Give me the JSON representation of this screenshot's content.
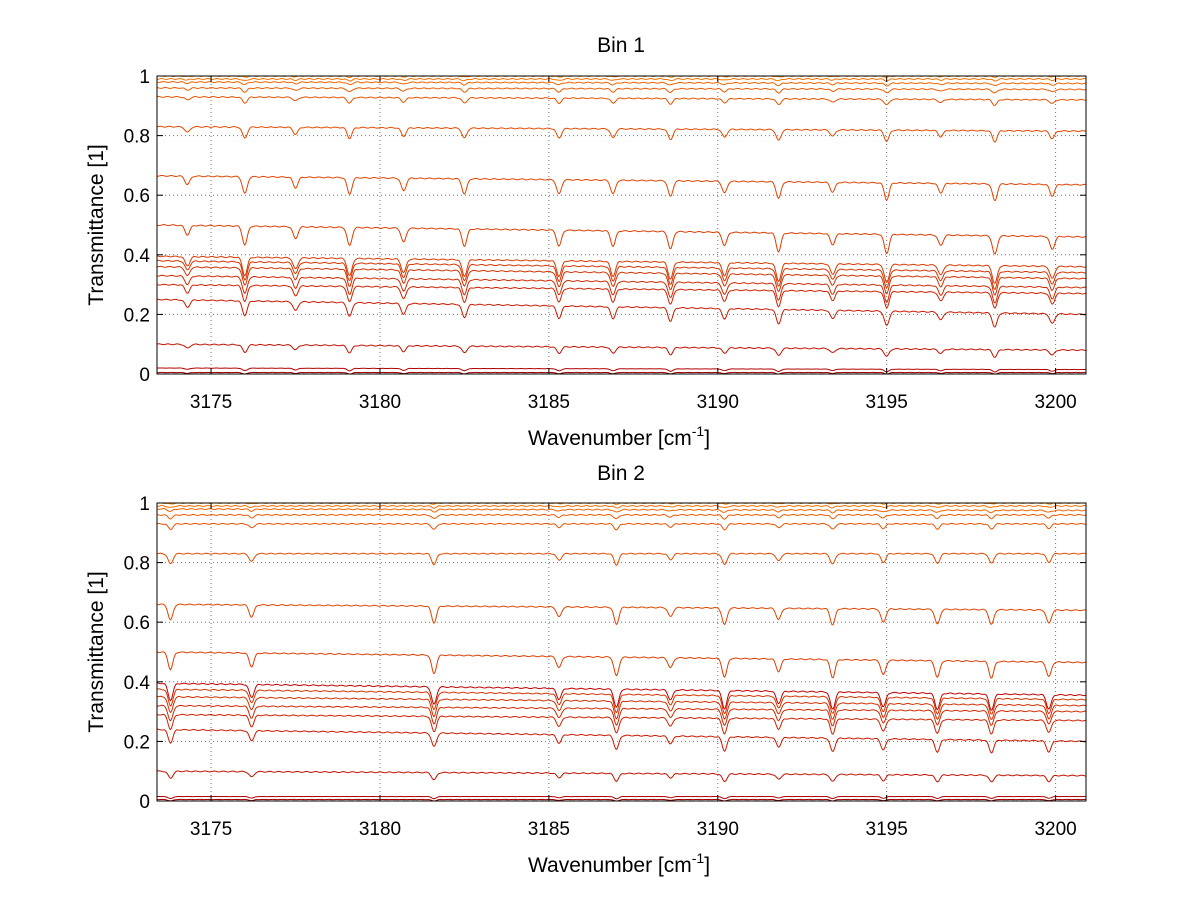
{
  "chart_data": [
    {
      "type": "line",
      "title": "Bin 1",
      "xlabel": "Wavenumber [cm",
      "xlabel_sup": "-1",
      "xlabel_end": "]",
      "ylabel": "Transmittance [1]",
      "xlim": [
        3173.4,
        3200.9
      ],
      "ylim": [
        0,
        1
      ],
      "xticks": [
        3175,
        3180,
        3185,
        3190,
        3195,
        3200
      ],
      "yticks": [
        0,
        0.2,
        0.4,
        0.6,
        0.8,
        1
      ],
      "ytick_labels": [
        "0",
        "0.2",
        "0.4",
        "0.6",
        "0.8",
        "1"
      ],
      "grid": true,
      "legend": "none",
      "absorption_lines": [
        3174.3,
        3176.0,
        3177.5,
        3179.1,
        3180.7,
        3182.5,
        3185.3,
        3186.9,
        3188.6,
        3190.2,
        3191.8,
        3193.4,
        3195.0,
        3196.6,
        3198.2,
        3199.9
      ],
      "series": [
        {
          "start": 0.0,
          "end": 0.0,
          "color": "#8b0000"
        },
        {
          "start": 0.005,
          "end": 0.005,
          "color": "#a00000"
        },
        {
          "start": 0.02,
          "end": 0.015,
          "color": "#b00000"
        },
        {
          "start": 0.1,
          "end": 0.08,
          "color": "#c01000"
        },
        {
          "start": 0.25,
          "end": 0.2,
          "color": "#c81800"
        },
        {
          "start": 0.3,
          "end": 0.27,
          "color": "#cc2000"
        },
        {
          "start": 0.33,
          "end": 0.29,
          "color": "#d02800"
        },
        {
          "start": 0.36,
          "end": 0.32,
          "color": "#d03000"
        },
        {
          "start": 0.38,
          "end": 0.34,
          "color": "#d43400"
        },
        {
          "start": 0.395,
          "end": 0.36,
          "color": "#d83800"
        },
        {
          "start": 0.5,
          "end": 0.46,
          "color": "#dc3c00"
        },
        {
          "start": 0.665,
          "end": 0.635,
          "color": "#e04400"
        },
        {
          "start": 0.83,
          "end": 0.815,
          "color": "#e44a00"
        },
        {
          "start": 0.93,
          "end": 0.92,
          "color": "#e85200"
        },
        {
          "start": 0.96,
          "end": 0.955,
          "color": "#ec5a00"
        },
        {
          "start": 0.98,
          "end": 0.975,
          "color": "#f06400"
        },
        {
          "start": 0.99,
          "end": 0.99,
          "color": "#f47000"
        },
        {
          "start": 1.0,
          "end": 1.0,
          "color": "#ff8c00"
        }
      ]
    },
    {
      "type": "line",
      "title": "Bin 2",
      "xlabel": "Wavenumber [cm",
      "xlabel_sup": "-1",
      "xlabel_end": "]",
      "ylabel": "Transmittance [1]",
      "xlim": [
        3173.4,
        3200.9
      ],
      "ylim": [
        0,
        1
      ],
      "xticks": [
        3175,
        3180,
        3185,
        3190,
        3195,
        3200
      ],
      "yticks": [
        0,
        0.2,
        0.4,
        0.6,
        0.8,
        1
      ],
      "ytick_labels": [
        "0",
        "0.2",
        "0.4",
        "0.6",
        "0.8",
        "1"
      ],
      "grid": true,
      "legend": "none",
      "absorption_lines": [
        3173.8,
        3176.2,
        3181.6,
        3185.3,
        3187.0,
        3188.6,
        3190.2,
        3191.8,
        3193.4,
        3194.9,
        3196.5,
        3198.1,
        3199.8
      ],
      "series": [
        {
          "start": 0.0,
          "end": 0.0,
          "color": "#8b0000"
        },
        {
          "start": 0.005,
          "end": 0.005,
          "color": "#a00000"
        },
        {
          "start": 0.015,
          "end": 0.015,
          "color": "#b00000"
        },
        {
          "start": 0.1,
          "end": 0.085,
          "color": "#c01000"
        },
        {
          "start": 0.24,
          "end": 0.2,
          "color": "#c81800"
        },
        {
          "start": 0.29,
          "end": 0.27,
          "color": "#cc2000"
        },
        {
          "start": 0.32,
          "end": 0.3,
          "color": "#d02800"
        },
        {
          "start": 0.35,
          "end": 0.32,
          "color": "#d03000"
        },
        {
          "start": 0.375,
          "end": 0.34,
          "color": "#d43400"
        },
        {
          "start": 0.395,
          "end": 0.355,
          "color": "#c00000"
        },
        {
          "start": 0.5,
          "end": 0.465,
          "color": "#dc3c00"
        },
        {
          "start": 0.66,
          "end": 0.64,
          "color": "#e04400"
        },
        {
          "start": 0.83,
          "end": 0.83,
          "color": "#e44a00"
        },
        {
          "start": 0.93,
          "end": 0.93,
          "color": "#e85200"
        },
        {
          "start": 0.96,
          "end": 0.96,
          "color": "#ec5a00"
        },
        {
          "start": 0.98,
          "end": 0.975,
          "color": "#f06400"
        },
        {
          "start": 0.99,
          "end": 0.99,
          "color": "#f47000"
        },
        {
          "start": 1.0,
          "end": 1.0,
          "color": "#ff8c00"
        }
      ]
    }
  ]
}
